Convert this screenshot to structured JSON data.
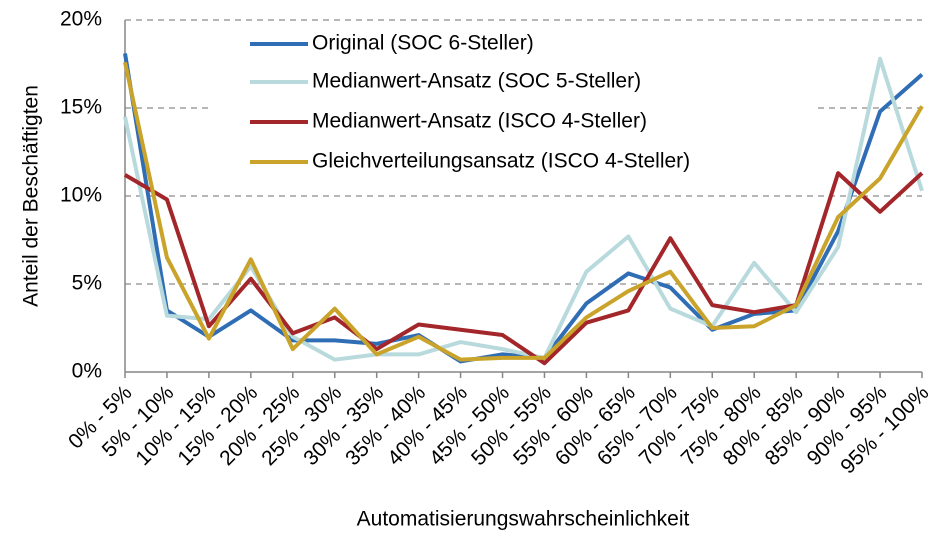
{
  "chart_data": {
    "type": "line",
    "x_label": "Automatisierungswahrscheinlichkeit",
    "y_label": "Anteil der Beschäftigten",
    "categories": [
      "0% - 5%",
      "5% - 10%",
      "10% - 15%",
      "15% - 20%",
      "20% - 25%",
      "25% - 30%",
      "30% - 35%",
      "35% - 40%",
      "40% - 45%",
      "45% - 50%",
      "50% - 55%",
      "55% - 60%",
      "60% - 65%",
      "65% - 70%",
      "70% - 75%",
      "75% - 80%",
      "80% - 85%",
      "85% - 90%",
      "90% - 95%",
      "95% - 100%"
    ],
    "series": [
      {
        "name": "Original (SOC 6-Steller)",
        "color": "#2f6db5",
        "values": [
          18.1,
          3.5,
          2.0,
          3.5,
          1.8,
          1.8,
          1.6,
          2.1,
          0.6,
          1.0,
          0.8,
          3.9,
          5.6,
          4.8,
          2.4,
          3.3,
          3.5,
          8.0,
          14.8,
          16.9
        ]
      },
      {
        "name": "Medianwert-Ansatz (SOC 5-Steller)",
        "color": "#b9dadd",
        "values": [
          14.5,
          3.2,
          3.0,
          6.0,
          2.0,
          0.7,
          1.0,
          1.0,
          1.7,
          1.3,
          0.8,
          5.7,
          7.7,
          3.6,
          2.6,
          6.2,
          3.4,
          7.1,
          17.8,
          10.3
        ]
      },
      {
        "name": "Medianwert-Ansatz (ISCO 4-Steller)",
        "color": "#a3262a",
        "values": [
          11.2,
          9.8,
          2.6,
          5.3,
          2.2,
          3.1,
          1.3,
          2.7,
          2.4,
          2.1,
          0.5,
          2.8,
          3.5,
          7.6,
          3.8,
          3.4,
          3.8,
          11.3,
          9.1,
          11.3
        ]
      },
      {
        "name": "Gleichverteilungsansatz (ISCO 4-Steller)",
        "color": "#c9a32a",
        "values": [
          17.6,
          6.5,
          1.9,
          6.4,
          1.3,
          3.6,
          1.0,
          2.0,
          0.7,
          0.8,
          0.8,
          3.1,
          4.6,
          5.7,
          2.5,
          2.6,
          3.8,
          8.8,
          11.0,
          15.1
        ]
      }
    ],
    "ylim": [
      0,
      20
    ],
    "yticks": [
      {
        "value": 0,
        "label": "0%"
      },
      {
        "value": 5,
        "label": "5%"
      },
      {
        "value": 10,
        "label": "10%"
      },
      {
        "value": 15,
        "label": "15%"
      },
      {
        "value": 20,
        "label": "20%"
      }
    ],
    "grid": true
  }
}
